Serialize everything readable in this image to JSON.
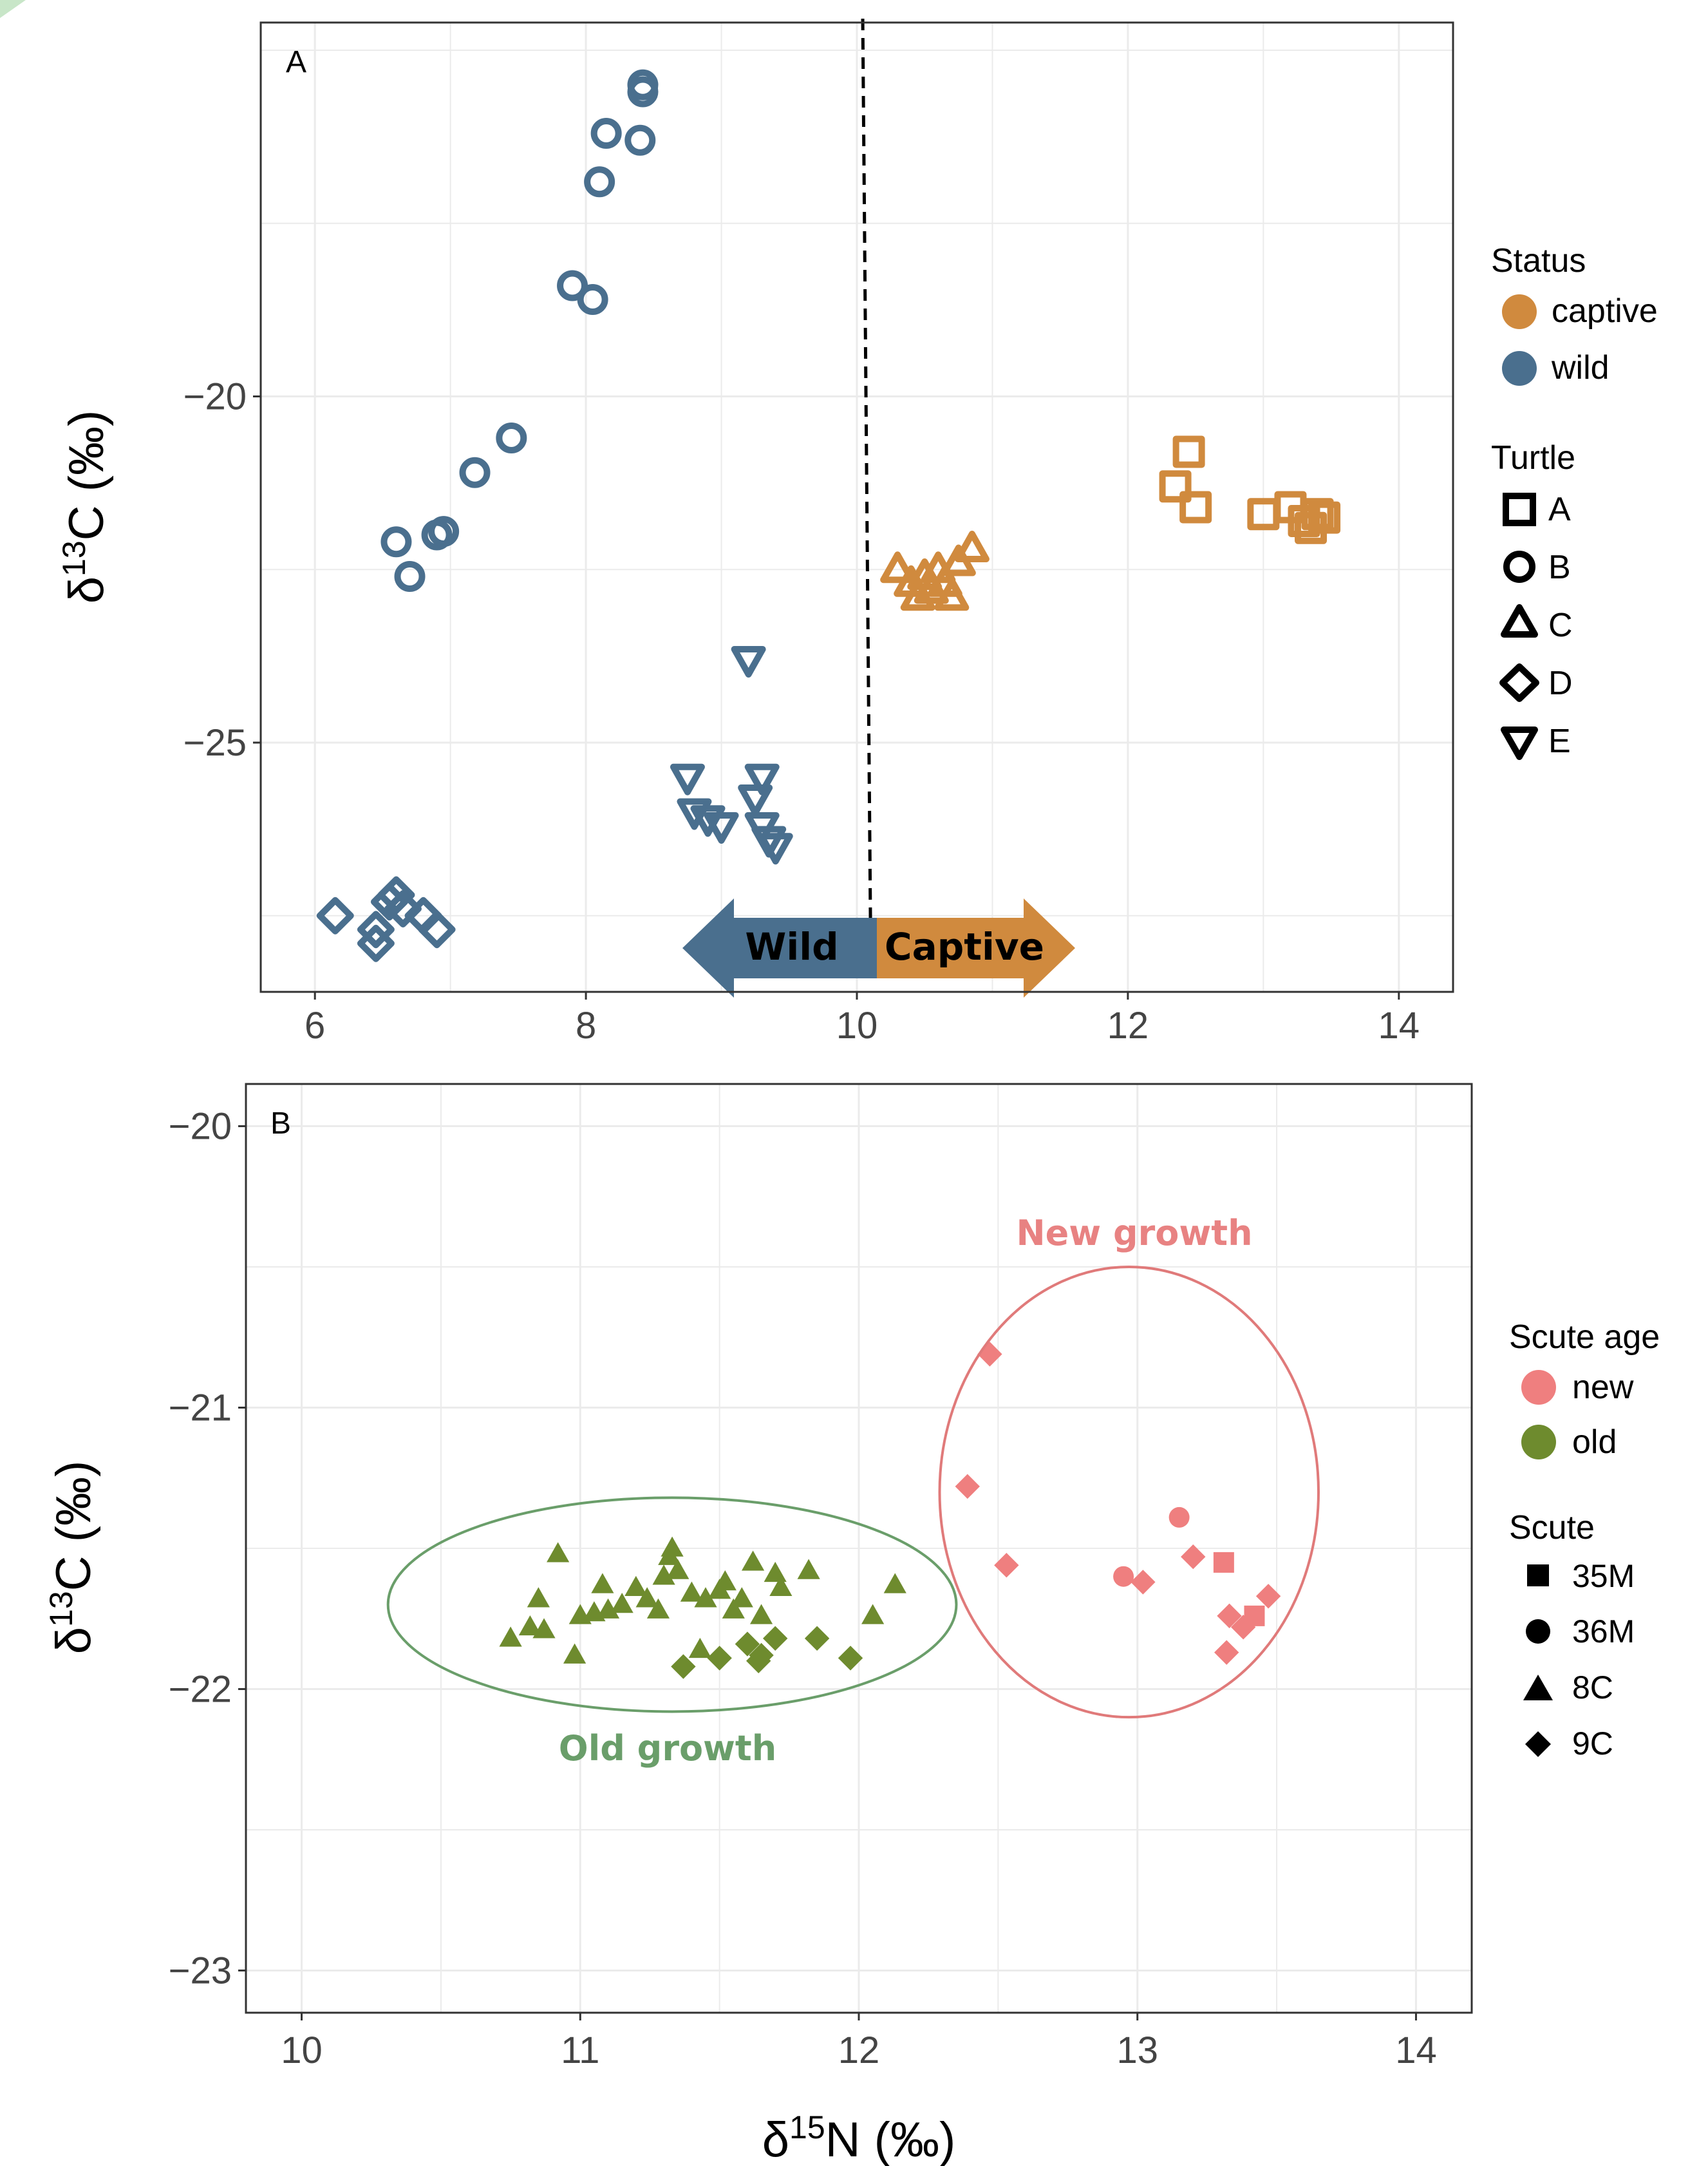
{
  "colors": {
    "captive": "#D08A3E",
    "wild": "#4A6F8E",
    "new": "#EF7F7F",
    "old": "#6E8B2E",
    "new_ellipse": "#E07A7A",
    "old_ellipse": "#6A9E6A",
    "grid": "#EBEBEB",
    "frame": "#333333"
  },
  "chart_data": [
    {
      "panel_label": "A",
      "type": "scatter",
      "ylabel_base": "δ",
      "ylabel_sup": "13",
      "ylabel_rest": "C (‰)",
      "xlim": [
        5.6,
        14.4
      ],
      "ylim": [
        -28.6,
        -14.6
      ],
      "x_ticks": [
        6,
        8,
        10,
        12,
        14
      ],
      "y_ticks": [
        -20,
        -25
      ],
      "grid": true,
      "divider_x": 10.1,
      "arrow_left_label": "Wild",
      "arrow_right_label": "Captive",
      "legend_status_title": "Status",
      "legend_status": [
        {
          "label": "captive",
          "color_key": "captive"
        },
        {
          "label": "wild",
          "color_key": "wild"
        }
      ],
      "legend_shape_title": "Turtle",
      "legend_shapes": [
        {
          "label": "A",
          "shape": "square"
        },
        {
          "label": "B",
          "shape": "circle"
        },
        {
          "label": "C",
          "shape": "triangle"
        },
        {
          "label": "D",
          "shape": "diamond"
        },
        {
          "label": "E",
          "shape": "triangle-down"
        }
      ],
      "series": [
        {
          "status": "captive",
          "turtle": "A",
          "points": [
            [
              12.45,
              -20.8
            ],
            [
              12.35,
              -21.3
            ],
            [
              12.5,
              -21.6
            ],
            [
              13.0,
              -21.7
            ],
            [
              13.2,
              -21.6
            ],
            [
              13.3,
              -21.8
            ],
            [
              13.35,
              -21.9
            ],
            [
              13.45,
              -21.75
            ],
            [
              13.4,
              -21.7
            ]
          ]
        },
        {
          "status": "captive",
          "turtle": "C",
          "points": [
            [
              10.3,
              -22.5
            ],
            [
              10.4,
              -22.7
            ],
            [
              10.5,
              -22.6
            ],
            [
              10.55,
              -22.8
            ],
            [
              10.65,
              -22.7
            ],
            [
              10.7,
              -22.9
            ],
            [
              10.6,
              -22.5
            ],
            [
              10.75,
              -22.4
            ],
            [
              10.85,
              -22.2
            ],
            [
              10.45,
              -22.9
            ]
          ]
        },
        {
          "status": "wild",
          "turtle": "B",
          "points": [
            [
              8.42,
              -15.5
            ],
            [
              8.42,
              -15.6
            ],
            [
              8.15,
              -16.2
            ],
            [
              8.4,
              -16.3
            ],
            [
              8.1,
              -16.9
            ],
            [
              7.9,
              -18.4
            ],
            [
              8.05,
              -18.6
            ],
            [
              7.45,
              -20.6
            ],
            [
              7.18,
              -21.1
            ],
            [
              6.9,
              -22.0
            ],
            [
              6.95,
              -21.95
            ],
            [
              6.6,
              -22.1
            ],
            [
              6.7,
              -22.6
            ]
          ]
        },
        {
          "status": "wild",
          "turtle": "E",
          "points": [
            [
              9.2,
              -23.8
            ],
            [
              8.75,
              -25.5
            ],
            [
              9.3,
              -25.5
            ],
            [
              9.25,
              -25.8
            ],
            [
              8.8,
              -26.0
            ],
            [
              8.9,
              -26.1
            ],
            [
              9.0,
              -26.2
            ],
            [
              9.3,
              -26.2
            ],
            [
              9.35,
              -26.4
            ],
            [
              9.4,
              -26.5
            ]
          ]
        },
        {
          "status": "wild",
          "turtle": "D",
          "points": [
            [
              6.15,
              -27.5
            ],
            [
              6.45,
              -27.7
            ],
            [
              6.55,
              -27.3
            ],
            [
              6.6,
              -27.2
            ],
            [
              6.65,
              -27.4
            ],
            [
              6.45,
              -27.9
            ],
            [
              6.8,
              -27.5
            ],
            [
              6.9,
              -27.7
            ]
          ]
        }
      ]
    },
    {
      "panel_label": "B",
      "type": "scatter",
      "xlabel_base": "δ",
      "xlabel_sup": "15",
      "xlabel_rest": "N (‰)",
      "ylabel_base": "δ",
      "ylabel_sup": "13",
      "ylabel_rest": "C (‰)",
      "xlim": [
        9.8,
        14.2
      ],
      "ylim": [
        -23.15,
        -19.85
      ],
      "x_ticks": [
        10,
        11,
        12,
        13,
        14
      ],
      "y_ticks": [
        -20,
        -21,
        -22,
        -23
      ],
      "grid": true,
      "annotation_new": "New growth",
      "annotation_old": "Old growth",
      "ellipse_new": {
        "cx": 12.97,
        "cy": -21.3,
        "rx": 0.68,
        "ry": 0.8
      },
      "ellipse_old": {
        "cx": 11.33,
        "cy": -21.7,
        "rx": 1.02,
        "ry": 0.38
      },
      "legend_age_title": "Scute age",
      "legend_age": [
        {
          "label": "new",
          "color_key": "new"
        },
        {
          "label": "old",
          "color_key": "old"
        }
      ],
      "legend_shape_title": "Scute",
      "legend_shapes": [
        {
          "label": "35M",
          "shape": "square"
        },
        {
          "label": "36M",
          "shape": "circle"
        },
        {
          "label": "8C",
          "shape": "triangle"
        },
        {
          "label": "9C",
          "shape": "diamond"
        }
      ],
      "series": [
        {
          "age": "new",
          "scute": "9C",
          "points": [
            [
              12.47,
              -20.81
            ],
            [
              12.39,
              -21.28
            ],
            [
              12.53,
              -21.56
            ],
            [
              13.02,
              -21.62
            ],
            [
              13.2,
              -21.53
            ],
            [
              13.47,
              -21.67
            ],
            [
              13.33,
              -21.74
            ],
            [
              13.38,
              -21.78
            ],
            [
              13.32,
              -21.87
            ]
          ]
        },
        {
          "age": "new",
          "scute": "35M",
          "points": [
            [
              13.31,
              -21.55
            ],
            [
              13.42,
              -21.74
            ]
          ]
        },
        {
          "age": "new",
          "scute": "36M",
          "points": [
            [
              13.15,
              -21.39
            ],
            [
              12.95,
              -21.6
            ]
          ]
        },
        {
          "age": "old",
          "scute": "9C",
          "points": [
            [
              11.37,
              -21.92
            ],
            [
              11.5,
              -21.89
            ],
            [
              11.6,
              -21.84
            ],
            [
              11.65,
              -21.88
            ],
            [
              11.7,
              -21.82
            ],
            [
              11.85,
              -21.82
            ],
            [
              11.97,
              -21.89
            ],
            [
              11.64,
              -21.9
            ]
          ]
        },
        {
          "age": "old",
          "scute": "8C",
          "points": [
            [
              10.75,
              -21.82
            ],
            [
              10.82,
              -21.78
            ],
            [
              10.87,
              -21.79
            ],
            [
              10.85,
              -21.68
            ],
            [
              10.92,
              -21.52
            ],
            [
              10.98,
              -21.88
            ],
            [
              11.0,
              -21.74
            ],
            [
              11.05,
              -21.73
            ],
            [
              11.08,
              -21.63
            ],
            [
              11.1,
              -21.72
            ],
            [
              11.15,
              -21.7
            ],
            [
              11.2,
              -21.64
            ],
            [
              11.24,
              -21.68
            ],
            [
              11.28,
              -21.72
            ],
            [
              11.3,
              -21.6
            ],
            [
              11.32,
              -21.53
            ],
            [
              11.33,
              -21.5
            ],
            [
              11.35,
              -21.58
            ],
            [
              11.4,
              -21.66
            ],
            [
              11.43,
              -21.86
            ],
            [
              11.45,
              -21.68
            ],
            [
              11.5,
              -21.65
            ],
            [
              11.52,
              -21.62
            ],
            [
              11.55,
              -21.72
            ],
            [
              11.58,
              -21.68
            ],
            [
              11.62,
              -21.55
            ],
            [
              11.65,
              -21.74
            ],
            [
              11.7,
              -21.59
            ],
            [
              11.72,
              -21.64
            ],
            [
              11.82,
              -21.58
            ],
            [
              12.05,
              -21.74
            ],
            [
              12.13,
              -21.63
            ]
          ]
        }
      ]
    }
  ]
}
